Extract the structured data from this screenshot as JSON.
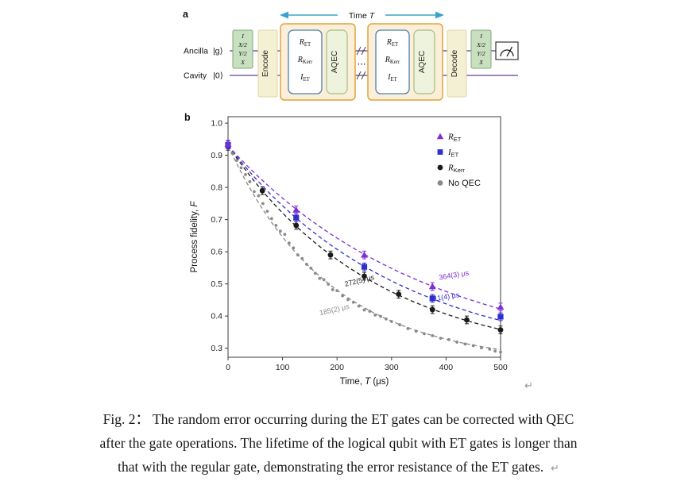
{
  "panel_a_label": "a",
  "panel_b_label": "b",
  "circuit": {
    "time_label_main": "Time ",
    "time_label_italic": "T",
    "ancilla_label": "Ancilla",
    "ancilla_state": "|g⟩",
    "cavity_label": "Cavity",
    "cavity_state": "|0⟩",
    "encode_label": "Encode",
    "decode_label": "Decode",
    "aqec_label": "AQEC",
    "tomo_gates": [
      "I",
      "X/2",
      "Y/2",
      "X"
    ],
    "gates": {
      "r": "R",
      "sub_et": "ET",
      "sub_kerr": "Kerr",
      "i": "I"
    },
    "dots": "⋯",
    "colors": {
      "wire": "#7b5ca8",
      "time_arrow": "#3ba3c9",
      "tomo_fill": "#c8e0c0",
      "tomo_border": "#7fa878",
      "encode_fill": "#f4f0d4",
      "encode_border": "#ddd6a6",
      "block_fill": "#fcefd9",
      "block_border": "#e2a339",
      "gate_fill": "#ffffff",
      "gate_border": "#4d7fae",
      "aqec_fill": "#eef3dd",
      "aqec_border": "#a8bc7e"
    }
  },
  "chart_data": {
    "type": "scatter",
    "title": "",
    "xlabel_main": "Time, ",
    "xlabel_italic": "T",
    "xlabel_unit": " (μs)",
    "ylabel_main": "Process fidelity, ",
    "ylabel_italic": "F",
    "xlim": [
      0,
      500
    ],
    "ylim": [
      0.272,
      1.02
    ],
    "xticks": [
      0,
      100,
      200,
      300,
      400,
      500
    ],
    "yticks": [
      0.3,
      0.4,
      0.5,
      0.6,
      0.7,
      0.8,
      0.9,
      1.0
    ],
    "grid": false,
    "legend_position": "top-right",
    "fit_model": "F(t) = A*exp(-t/tau) + C (dashed)",
    "fit_amplitude": 0.68,
    "fit_offset": 0.25,
    "series": [
      {
        "name": "R_ET",
        "label_main": "R",
        "label_sub": "ET",
        "marker": "triangle",
        "color": "#7c2fd4",
        "tau_us": 364,
        "tau_label": "364(3) μs",
        "tau_label_pos": {
          "t": 415,
          "f": 0.52,
          "rot": -9
        },
        "x": [
          0,
          125,
          250,
          375,
          500
        ],
        "y": [
          0.935,
          0.73,
          0.59,
          0.492,
          0.428
        ],
        "yerr": 0.012
      },
      {
        "name": "I_ET",
        "label_main": "I",
        "label_sub": "ET",
        "marker": "square",
        "color": "#2f2fd0",
        "tau_us": 311,
        "tau_label": "311(4) μs",
        "tau_label_pos": {
          "t": 398,
          "f": 0.452,
          "rot": -9
        },
        "x": [
          0,
          125,
          250,
          375,
          500
        ],
        "y": [
          0.932,
          0.706,
          0.553,
          0.455,
          0.398
        ],
        "yerr": 0.012
      },
      {
        "name": "R_Kerr",
        "label_main": "R",
        "label_sub": "Kerr",
        "marker": "circle",
        "color": "#1a1a1a",
        "tau_us": 272,
        "tau_label": "272(5) μs",
        "tau_label_pos": {
          "t": 242,
          "f": 0.503,
          "rot": -14
        },
        "x": [
          0,
          63,
          125,
          188,
          250,
          313,
          375,
          438,
          500
        ],
        "y": [
          0.928,
          0.79,
          0.682,
          0.59,
          0.524,
          0.468,
          0.42,
          0.388,
          0.357
        ],
        "yerr": 0.012
      },
      {
        "name": "No QEC",
        "label_main": "No QEC",
        "label_sub": "",
        "marker": "dot",
        "color": "#8a8a8a",
        "tau_us": 185,
        "tau_label": "185(2) μs",
        "tau_label_pos": {
          "t": 196,
          "f": 0.413,
          "rot": -13
        },
        "x": [
          0,
          8,
          16,
          24,
          32,
          40,
          48,
          56,
          64,
          72,
          80,
          88,
          96,
          104,
          112,
          120,
          128,
          136,
          144,
          152,
          160,
          168,
          176,
          184,
          192,
          200,
          210,
          220,
          230,
          240,
          250,
          260,
          270,
          280,
          290,
          300,
          315,
          330,
          345,
          360,
          375,
          390,
          405,
          420,
          435,
          450,
          465,
          480,
          490,
          500
        ],
        "y": [
          0.925,
          0.906,
          0.884,
          0.861,
          0.84,
          0.818,
          0.787,
          0.774,
          0.75,
          0.726,
          0.703,
          0.682,
          0.664,
          0.654,
          0.627,
          0.612,
          0.59,
          0.579,
          0.561,
          0.549,
          0.533,
          0.517,
          0.513,
          0.499,
          0.482,
          0.479,
          0.463,
          0.451,
          0.443,
          0.431,
          0.419,
          0.415,
          0.403,
          0.399,
          0.391,
          0.383,
          0.373,
          0.361,
          0.353,
          0.345,
          0.339,
          0.331,
          0.327,
          0.319,
          0.313,
          0.308,
          0.301,
          0.297,
          0.291,
          0.288
        ],
        "yerr": 0
      }
    ]
  },
  "caption": {
    "lines": [
      "Fig. 2：  The random error occurring during the ET gates can be corrected with QEC",
      "after the gate operations. The lifetime of the logical qubit with ET gates is longer than",
      "that with the regular gate, demonstrating the error resistance of the ET gates."
    ]
  },
  "return_mark": "↵"
}
